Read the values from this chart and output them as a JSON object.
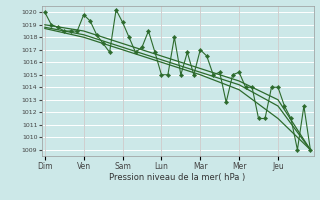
{
  "background_color": "#cce8e8",
  "grid_color": "#ffffff",
  "line_color": "#2d6b2d",
  "marker_color": "#2d6b2d",
  "xlabel": "Pression niveau de la mer( hPa )",
  "ylim": [
    1008.5,
    1020.5
  ],
  "yticks": [
    1009,
    1010,
    1011,
    1012,
    1013,
    1014,
    1015,
    1016,
    1017,
    1018,
    1019,
    1020
  ],
  "day_labels": [
    "Dim",
    "Ven",
    "Sam",
    "Lun",
    "Mar",
    "Mer",
    "Jeu"
  ],
  "day_positions": [
    0,
    6,
    12,
    18,
    24,
    30,
    36
  ],
  "total_points": 42,
  "series1_x": [
    0,
    1,
    2,
    3,
    4,
    5,
    6,
    7,
    8,
    9,
    10,
    11,
    12,
    13,
    14,
    15,
    16,
    17,
    18,
    19,
    20,
    21,
    22,
    23,
    24,
    25,
    26,
    27,
    28,
    29,
    30,
    31,
    32,
    33,
    34,
    35,
    36,
    37,
    38,
    39,
    40,
    41
  ],
  "series1_y": [
    1020,
    1019,
    1018.8,
    1018.5,
    1018.5,
    1018.5,
    1019.8,
    1019.3,
    1018.2,
    1017.5,
    1016.8,
    1020.2,
    1019.2,
    1018,
    1016.8,
    1017.2,
    1018.5,
    1016.8,
    1015,
    1015,
    1018,
    1015,
    1016.8,
    1015,
    1017,
    1016.5,
    1015,
    1015.2,
    1012.8,
    1015,
    1015.2,
    1014,
    1014,
    1011.5,
    1011.5,
    1014,
    1014,
    1012.5,
    1011.5,
    1009,
    1012.5,
    1009
  ],
  "series2_x": [
    0,
    6,
    12,
    18,
    24,
    30,
    36,
    41
  ],
  "series2_y": [
    1019,
    1018.5,
    1017.5,
    1016.5,
    1015.5,
    1014.5,
    1013,
    1009
  ],
  "series3_x": [
    0,
    6,
    12,
    18,
    24,
    30,
    36,
    41
  ],
  "series3_y": [
    1018.8,
    1018.2,
    1017.2,
    1016.2,
    1015.2,
    1014.2,
    1012.5,
    1009
  ],
  "series4_x": [
    0,
    6,
    12,
    18,
    24,
    30,
    36,
    41
  ],
  "series4_y": [
    1018.7,
    1018.0,
    1017.0,
    1016.0,
    1015.0,
    1013.8,
    1011.5,
    1009
  ]
}
